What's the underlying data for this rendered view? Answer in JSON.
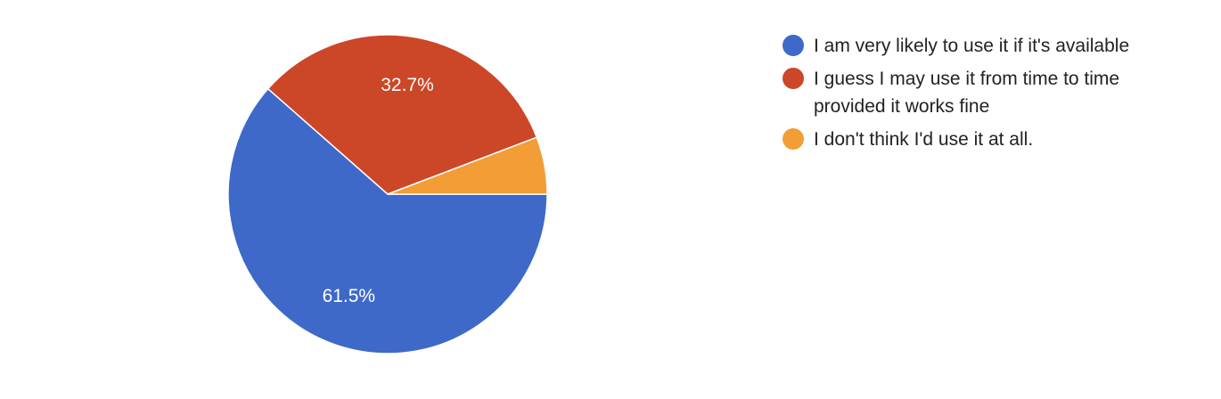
{
  "chart_data": {
    "type": "pie",
    "title": "",
    "categories": [
      "I am very likely to use it if it's available",
      "I guess I may use it from time to time provided it works fine",
      "I don't think I'd use it at all."
    ],
    "legend_lines": [
      [
        "I am very likely to use it if it's available"
      ],
      [
        "I guess I may use it from time to time",
        "provided it works fine"
      ],
      [
        "I don't think I'd use it at all."
      ]
    ],
    "values": [
      61.5,
      32.7,
      5.8
    ],
    "data_labels": [
      "61.5%",
      "32.7%",
      ""
    ],
    "colors": [
      "#3e69c8",
      "#cc4628",
      "#f39d37"
    ],
    "legend_position": "right"
  }
}
